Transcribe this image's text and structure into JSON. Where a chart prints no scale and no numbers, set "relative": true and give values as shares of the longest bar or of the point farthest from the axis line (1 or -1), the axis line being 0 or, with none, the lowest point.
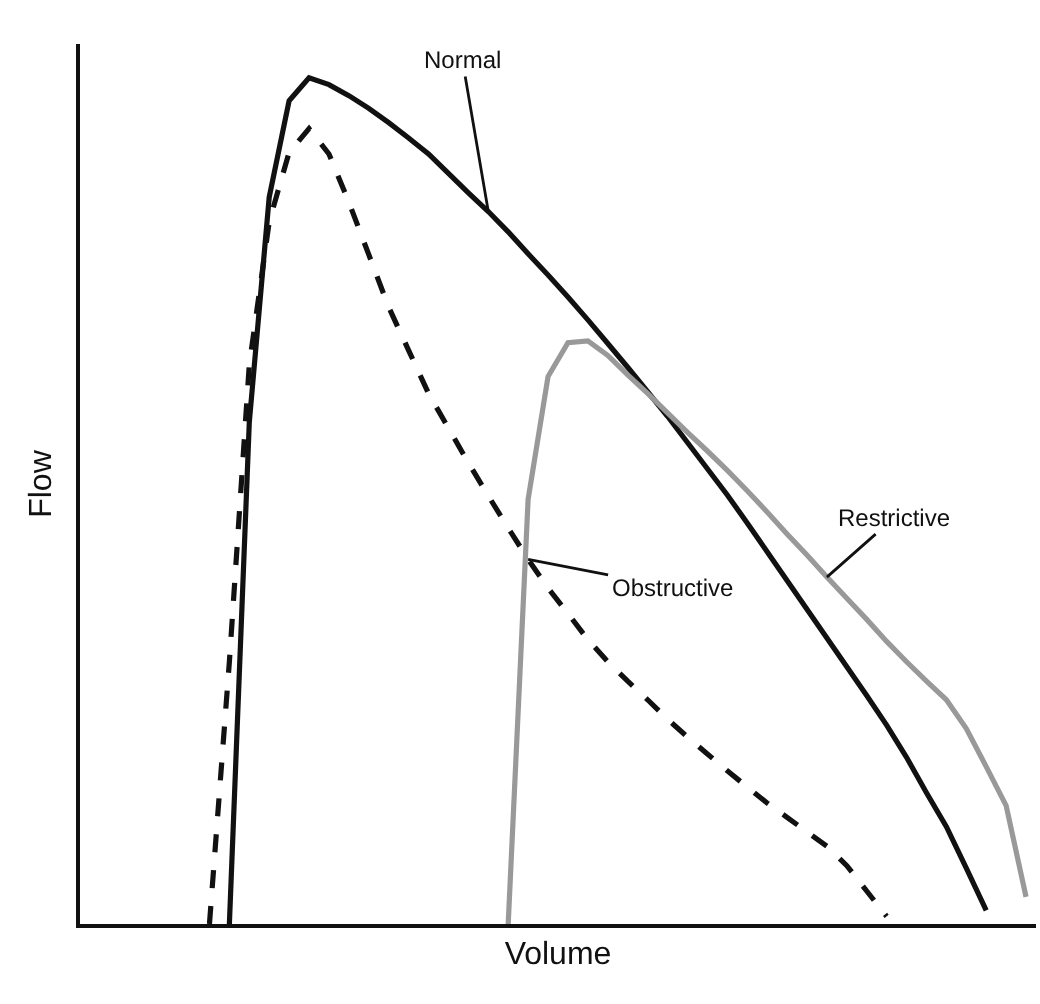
{
  "chart_data": {
    "type": "line",
    "relative": true,
    "xlabel": "Volume",
    "ylabel": "Flow",
    "legend": false,
    "tick_labels": false,
    "categories": [
      null,
      null,
      null,
      null,
      null,
      null,
      null,
      null,
      null,
      null,
      null,
      null,
      null,
      null,
      null,
      null,
      null,
      null,
      null,
      null,
      null,
      null,
      null,
      null,
      null,
      null,
      null,
      null,
      null,
      null,
      null,
      null,
      null,
      null,
      null,
      null,
      null,
      null,
      null,
      null,
      null,
      null,
      null,
      null,
      null,
      null,
      null,
      null
    ],
    "series": [
      {
        "name": "Normal",
        "color": "#111111",
        "line_style": "solid",
        "values": [
          null,
          null,
          null,
          null,
          null,
          null,
          null,
          0,
          0.593,
          0.859,
          0.973,
          1.0,
          0.992,
          0.979,
          0.964,
          0.947,
          0.929,
          0.91,
          0.887,
          0.864,
          0.842,
          0.818,
          0.792,
          0.767,
          0.741,
          0.714,
          0.686,
          0.658,
          0.629,
          0.6,
          0.569,
          0.538,
          0.507,
          0.474,
          0.44,
          0.406,
          0.372,
          0.338,
          0.304,
          0.27,
          0.235,
          0.197,
          0.155,
          0.115,
          0.066,
          0.016,
          null,
          null
        ]
      },
      {
        "name": "Obstructive",
        "color": "#111111",
        "line_style": "dashed",
        "values": [
          null,
          null,
          null,
          null,
          null,
          null,
          0,
          0.31,
          0.661,
          0.83,
          0.912,
          0.94,
          0.91,
          0.853,
          0.791,
          0.729,
          0.678,
          0.627,
          0.586,
          0.545,
          0.506,
          0.468,
          0.431,
          0.397,
          0.367,
          0.336,
          0.31,
          0.287,
          0.265,
          0.242,
          0.221,
          0.201,
          0.181,
          0.162,
          0.143,
          0.126,
          0.109,
          0.092,
          0.069,
          0.039,
          0.009,
          null,
          null,
          null,
          null,
          null,
          null,
          null
        ]
      },
      {
        "name": "Restrictive",
        "color": "#999999",
        "line_style": "solid",
        "values": [
          null,
          null,
          null,
          null,
          null,
          null,
          null,
          null,
          null,
          null,
          null,
          null,
          null,
          null,
          null,
          null,
          null,
          null,
          null,
          null,
          null,
          0,
          0.502,
          0.647,
          0.687,
          0.689,
          0.672,
          0.649,
          0.627,
          0.604,
          0.581,
          0.559,
          0.536,
          0.512,
          0.487,
          0.461,
          0.436,
          0.41,
          0.385,
          0.36,
          0.334,
          0.31,
          0.287,
          0.265,
          0.231,
          0.186,
          0.14,
          0.032
        ]
      }
    ]
  }
}
